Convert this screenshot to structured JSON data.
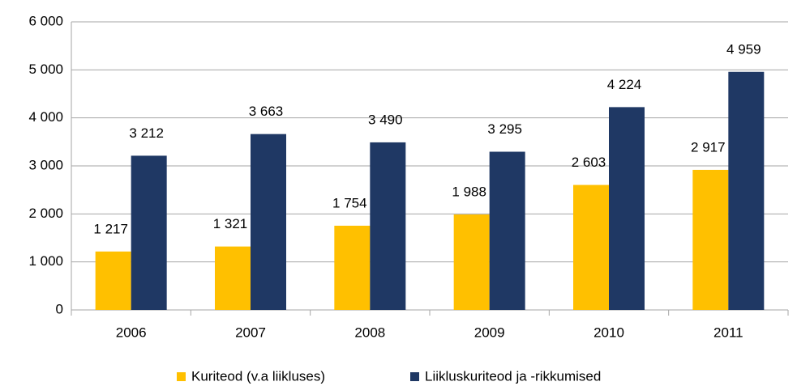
{
  "chart_data": {
    "type": "bar",
    "categories": [
      "2006",
      "2007",
      "2008",
      "2009",
      "2010",
      "2011"
    ],
    "series": [
      {
        "name": "Kuriteod (v.a liikluses)",
        "color": "#ffc000",
        "values": [
          1217,
          1321,
          1754,
          1988,
          2603,
          2917
        ],
        "value_labels": [
          "1 217",
          "1 321",
          "1 754",
          "1 988",
          "2 603",
          "2 917"
        ]
      },
      {
        "name": "Liikluskuriteod ja -rikkumised",
        "color": "#1f3864",
        "values": [
          3212,
          3663,
          3490,
          3295,
          4224,
          4959
        ],
        "value_labels": [
          "3 212",
          "3 663",
          "3 490",
          "3 295",
          "4 224",
          "4 959"
        ]
      }
    ],
    "ylim": [
      0,
      6000
    ],
    "yticks": [
      {
        "value": 0,
        "label": "0"
      },
      {
        "value": 1000,
        "label": "1 000"
      },
      {
        "value": 2000,
        "label": "2 000"
      },
      {
        "value": 3000,
        "label": "3 000"
      },
      {
        "value": 4000,
        "label": "4 000"
      },
      {
        "value": 5000,
        "label": "5 000"
      },
      {
        "value": 6000,
        "label": "6 000"
      }
    ],
    "grid": true,
    "legend": "bottom"
  }
}
